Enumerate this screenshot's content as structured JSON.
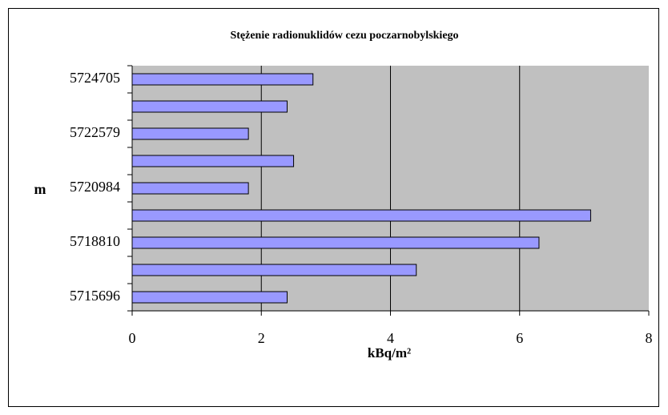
{
  "chart_data": {
    "type": "bar",
    "orientation": "horizontal",
    "title": "Stężenie radionuklidów cezu poczarnobylskiego",
    "x_label": "kBq/m²",
    "y_label": "m",
    "categories": [
      "5715696",
      null,
      "5718810",
      null,
      "5720984",
      null,
      "5722579",
      null,
      "5724705"
    ],
    "values": [
      2.4,
      4.4,
      6.3,
      7.1,
      1.8,
      2.5,
      1.8,
      2.4,
      2.8
    ],
    "color": "#9999ff",
    "xlim": [
      0,
      8
    ],
    "xticks": [
      0,
      2,
      4,
      6,
      8
    ],
    "grid": true
  }
}
